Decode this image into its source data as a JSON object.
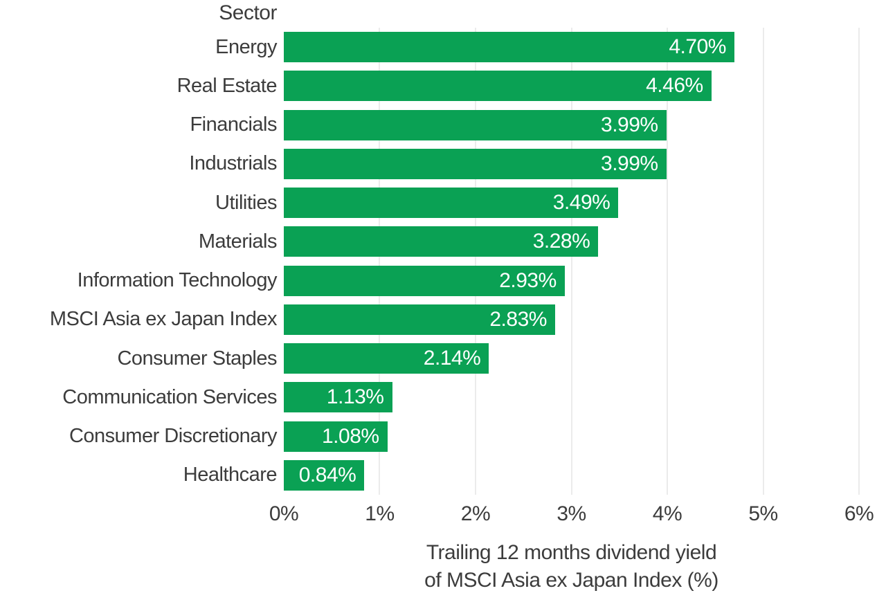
{
  "colors": {
    "bar": "#0aa154",
    "bar_label": "#ffffff",
    "text": "#3c3c3c",
    "gridline": "#ebebeb",
    "background": "#ffffff"
  },
  "chart_data": {
    "type": "bar",
    "orientation": "horizontal",
    "column_header": "Sector",
    "categories": [
      "Energy",
      "Real Estate",
      "Financials",
      "Industrials",
      "Utilities",
      "Materials",
      "Information Technology",
      "MSCI Asia ex Japan Index",
      "Consumer Staples",
      "Communication Services",
      "Consumer Discretionary",
      "Healthcare"
    ],
    "values": [
      4.7,
      4.46,
      3.99,
      3.99,
      3.49,
      3.28,
      2.93,
      2.83,
      2.14,
      1.13,
      1.08,
      0.84
    ],
    "value_labels": [
      "4.70%",
      "4.46%",
      "3.99%",
      "3.99%",
      "3.49%",
      "3.28%",
      "2.93%",
      "2.83%",
      "2.14%",
      "1.13%",
      "1.08%",
      "0.84%"
    ],
    "x_ticks": [
      "0%",
      "1%",
      "2%",
      "3%",
      "4%",
      "5%",
      "6%"
    ],
    "xlim": [
      0,
      6
    ],
    "grid": "vertical-only",
    "legend": "none",
    "xlabel_line1": "Trailing 12 months dividend yield",
    "xlabel_line2": "of MSCI Asia ex Japan Index (%)",
    "title": "",
    "ylabel": "Sector"
  }
}
